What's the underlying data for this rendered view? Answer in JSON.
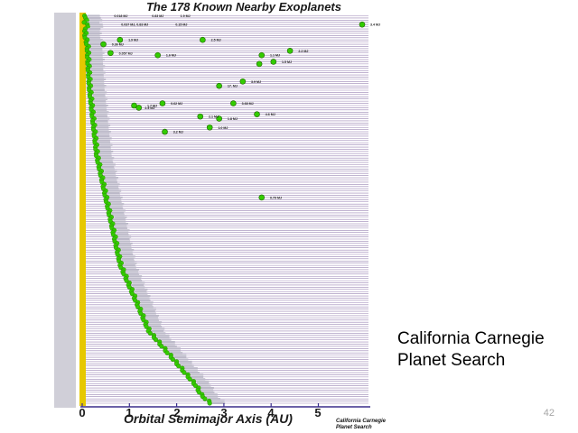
{
  "title": "The 178 Known Nearby Exoplanets",
  "caption_line1": "California Carnegie",
  "caption_line2": "Planet Search",
  "slide_number": "42",
  "plot": {
    "xlabel": "Orbital Semimajor Axis  (AU)",
    "ticks": [
      "0",
      "1",
      "2",
      "3",
      "4",
      "5"
    ],
    "credit_line1": "California Carnegie",
    "credit_line2": "Planet Search",
    "star_count": 178,
    "colors": {
      "star": "#e6c800",
      "planet": "#33cc00",
      "row_line": "#9b86b4",
      "axis": "#3b2e8c"
    },
    "top_annotations": [
      "0.018 MJ",
      "0.83 MJ",
      "1.9 MJ"
    ],
    "row5_annotations": [
      "0.037 MJ, 0.83 MJ",
      "0.15 MJ",
      "3.4 MJ"
    ]
  },
  "chart_data": {
    "type": "scatter",
    "title": "The 178 Known Nearby Exoplanets",
    "xlabel": "Orbital Semimajor Axis  (AU)",
    "xlim": [
      0,
      6
    ],
    "grid": false,
    "series": [
      {
        "points": [
          [
            0.05,
            1
          ],
          [
            0.07,
            2
          ],
          [
            0.06,
            3
          ],
          [
            0.04,
            4
          ],
          [
            0.11,
            5
          ],
          [
            0.08,
            6
          ],
          [
            0.05,
            8
          ],
          [
            0.05,
            10
          ],
          [
            0.1,
            15
          ],
          [
            0.12,
            25
          ],
          [
            0.15,
            35
          ],
          [
            0.2,
            45
          ],
          [
            0.25,
            55
          ],
          [
            0.3,
            65
          ],
          [
            0.4,
            75
          ],
          [
            0.5,
            85
          ],
          [
            0.6,
            95
          ],
          [
            0.7,
            105
          ],
          [
            0.8,
            115
          ],
          [
            1.0,
            125
          ],
          [
            1.2,
            135
          ],
          [
            1.4,
            145
          ],
          [
            1.6,
            150
          ],
          [
            1.8,
            155
          ],
          [
            2.0,
            160
          ],
          [
            2.2,
            165
          ],
          [
            2.4,
            170
          ],
          [
            2.5,
            174
          ],
          [
            2.7,
            178
          ]
        ]
      }
    ],
    "outer_planets": [
      [
        6.0,
        5
      ],
      [
        0.8,
        12
      ],
      [
        2.55,
        12
      ],
      [
        0.45,
        14
      ],
      [
        4.4,
        17
      ],
      [
        0.6,
        18
      ],
      [
        1.6,
        19
      ],
      [
        3.8,
        19
      ],
      [
        4.05,
        22
      ],
      [
        3.75,
        23
      ],
      [
        3.4,
        31
      ],
      [
        2.9,
        33
      ],
      [
        1.1,
        42
      ],
      [
        1.7,
        41
      ],
      [
        3.2,
        41
      ],
      [
        1.2,
        43
      ],
      [
        3.7,
        46
      ],
      [
        2.5,
        47
      ],
      [
        2.9,
        48
      ],
      [
        2.7,
        52
      ],
      [
        1.75,
        54
      ],
      [
        3.8,
        84
      ]
    ],
    "mass_labels": [
      "0.018 MJ",
      "0.83 MJ",
      "1.9 MJ",
      "0.037 MJ, 0.83 MJ",
      "0.15 MJ",
      "3.4 MJ",
      "1.9 MJ",
      "2.5 MJ",
      "0.36 MJ",
      "2.2 MJ",
      "0.057 MJ",
      "1.6 MJ",
      "1.1 MJ",
      "1.5 MJ",
      "3.9 MJ",
      "17. MJ",
      "0.62 MJ",
      "2.4 MJ",
      "1.7 MJ",
      "3.68 MJ",
      "4.6 MJ",
      "2.1 MJ",
      "1.8 MJ",
      "1.0 MJ",
      "3.2 MJ",
      "0.79 MJ"
    ]
  }
}
